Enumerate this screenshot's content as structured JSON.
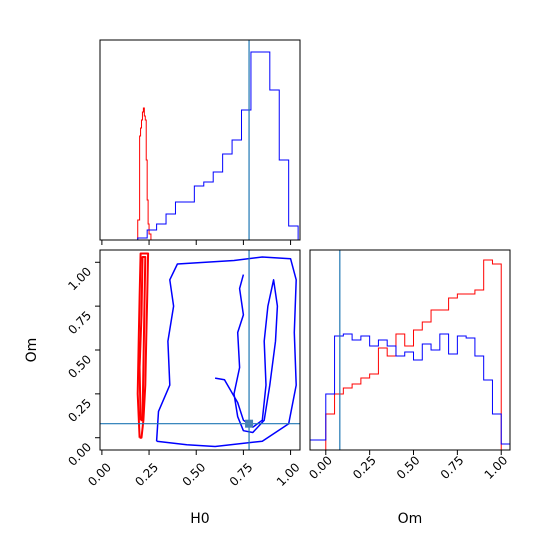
{
  "colors": {
    "truth": "#1f77b4",
    "series_red": "#ff0000",
    "series_blue": "#0000ff"
  },
  "chart_data": [
    {
      "type": "corner",
      "panel": "hist-H0",
      "xlabel": "",
      "xlim": [
        -0.01,
        1.05
      ],
      "x_tick_labels_visible": false,
      "x_ticks": [
        0.0,
        0.25,
        0.5,
        0.75,
        1.0
      ],
      "truth_x": 0.78,
      "series": [
        {
          "color": "#ff0000",
          "edges": [
            0.19,
            0.2,
            0.205,
            0.21,
            0.215,
            0.22,
            0.225,
            0.23,
            0.235,
            0.24,
            0.245,
            0.25,
            0.26
          ],
          "counts": [
            0.1,
            0.52,
            0.56,
            0.6,
            0.64,
            0.66,
            0.62,
            0.6,
            0.4,
            0.2,
            0.08,
            0.03
          ]
        },
        {
          "color": "#0000ff",
          "edges": [
            0.19,
            0.24,
            0.29,
            0.34,
            0.39,
            0.44,
            0.49,
            0.54,
            0.59,
            0.64,
            0.69,
            0.74,
            0.79,
            0.84,
            0.89,
            0.94,
            0.99,
            1.04
          ],
          "counts": [
            0.01,
            0.05,
            0.08,
            0.13,
            0.19,
            0.19,
            0.27,
            0.29,
            0.34,
            0.43,
            0.5,
            0.65,
            0.94,
            0.94,
            0.75,
            0.4,
            0.07
          ]
        }
      ]
    },
    {
      "type": "contour",
      "panel": "2d-H0-Om",
      "xlabel": "H0",
      "ylabel": "Om",
      "xlim": [
        -0.01,
        1.05
      ],
      "ylim": [
        -0.07,
        1.07
      ],
      "x_ticks": [
        0.0,
        0.25,
        0.5,
        0.75,
        1.0
      ],
      "x_tick_labels": [
        "0.00",
        "0.25",
        "0.50",
        "0.75",
        "1.00"
      ],
      "y_ticks": [
        0.0,
        0.25,
        0.5,
        0.75,
        1.0
      ],
      "y_tick_labels": [
        "0.00",
        "0.25",
        "0.50",
        "0.75",
        "1.00"
      ],
      "truth": [
        0.78,
        0.08
      ],
      "series": [
        {
          "color": "#ff0000",
          "contours": [
            [
              [
                0.2,
                0.0
              ],
              [
                0.19,
                0.25
              ],
              [
                0.195,
                0.55
              ],
              [
                0.2,
                0.8
              ],
              [
                0.205,
                1.05
              ],
              [
                0.245,
                1.05
              ],
              [
                0.24,
                0.8
              ],
              [
                0.235,
                0.55
              ],
              [
                0.23,
                0.3
              ],
              [
                0.22,
                0.1
              ],
              [
                0.21,
                0.0
              ],
              [
                0.2,
                0.0
              ]
            ],
            [
              [
                0.205,
                0.1
              ],
              [
                0.2,
                0.4
              ],
              [
                0.21,
                0.7
              ],
              [
                0.215,
                1.03
              ],
              [
                0.23,
                1.03
              ],
              [
                0.225,
                0.7
              ],
              [
                0.22,
                0.4
              ],
              [
                0.215,
                0.1
              ],
              [
                0.205,
                0.1
              ]
            ]
          ]
        },
        {
          "color": "#0000ff",
          "contours": [
            [
              [
                0.29,
                -0.02
              ],
              [
                0.3,
                0.15
              ],
              [
                0.36,
                0.3
              ],
              [
                0.35,
                0.55
              ],
              [
                0.38,
                0.75
              ],
              [
                0.36,
                0.9
              ],
              [
                0.4,
                0.99
              ],
              [
                0.55,
                1.0
              ],
              [
                0.7,
                1.01
              ],
              [
                0.85,
                1.03
              ],
              [
                1.0,
                1.02
              ],
              [
                1.03,
                0.9
              ],
              [
                1.02,
                0.6
              ],
              [
                1.03,
                0.3
              ],
              [
                0.99,
                0.08
              ],
              [
                0.85,
                -0.02
              ],
              [
                0.6,
                -0.05
              ],
              [
                0.45,
                -0.04
              ],
              [
                0.29,
                -0.02
              ]
            ],
            [
              [
                0.6,
                0.34
              ],
              [
                0.65,
                0.33
              ],
              [
                0.72,
                0.2
              ],
              [
                0.75,
                0.1
              ],
              [
                0.8,
                0.06
              ],
              [
                0.85,
                0.1
              ],
              [
                0.87,
                0.3
              ],
              [
                0.86,
                0.55
              ],
              [
                0.88,
                0.75
              ],
              [
                0.91,
                0.9
              ],
              [
                0.93,
                0.75
              ],
              [
                0.92,
                0.55
              ],
              [
                0.89,
                0.3
              ],
              [
                0.86,
                0.1
              ],
              [
                0.8,
                0.03
              ],
              [
                0.75,
                0.04
              ],
              [
                0.72,
                0.12
              ],
              [
                0.7,
                0.25
              ],
              [
                0.73,
                0.4
              ],
              [
                0.72,
                0.6
              ],
              [
                0.75,
                0.7
              ],
              [
                0.73,
                0.85
              ],
              [
                0.75,
                0.93
              ]
            ]
          ]
        }
      ]
    },
    {
      "type": "corner",
      "panel": "hist-Om",
      "xlabel": "Om",
      "xlim": [
        -0.09,
        1.05
      ],
      "x_ticks": [
        0.0,
        0.25,
        0.5,
        0.75,
        1.0
      ],
      "x_tick_labels": [
        "0.00",
        "0.25",
        "0.50",
        "0.75",
        "1.00"
      ],
      "truth_x": 0.08,
      "series": [
        {
          "color": "#ff0000",
          "edges": [
            0.0,
            0.05,
            0.1,
            0.15,
            0.2,
            0.25,
            0.3,
            0.35,
            0.4,
            0.45,
            0.5,
            0.55,
            0.6,
            0.65,
            0.7,
            0.75,
            0.8,
            0.85,
            0.9,
            0.95,
            1.0
          ],
          "counts": [
            0.18,
            0.28,
            0.31,
            0.33,
            0.36,
            0.38,
            0.51,
            0.47,
            0.58,
            0.52,
            0.6,
            0.64,
            0.7,
            0.7,
            0.76,
            0.78,
            0.78,
            0.8,
            0.95,
            0.93
          ]
        },
        {
          "color": "#0000ff",
          "edges": [
            -0.09,
            0.0,
            0.05,
            0.1,
            0.15,
            0.2,
            0.25,
            0.3,
            0.35,
            0.4,
            0.45,
            0.5,
            0.55,
            0.6,
            0.65,
            0.7,
            0.75,
            0.8,
            0.85,
            0.9,
            0.95,
            1.0,
            1.05
          ],
          "counts": [
            0.05,
            0.28,
            0.57,
            0.58,
            0.55,
            0.57,
            0.52,
            0.55,
            0.52,
            0.47,
            0.49,
            0.45,
            0.53,
            0.5,
            0.58,
            0.48,
            0.57,
            0.56,
            0.47,
            0.35,
            0.18,
            0.03
          ]
        }
      ]
    }
  ]
}
